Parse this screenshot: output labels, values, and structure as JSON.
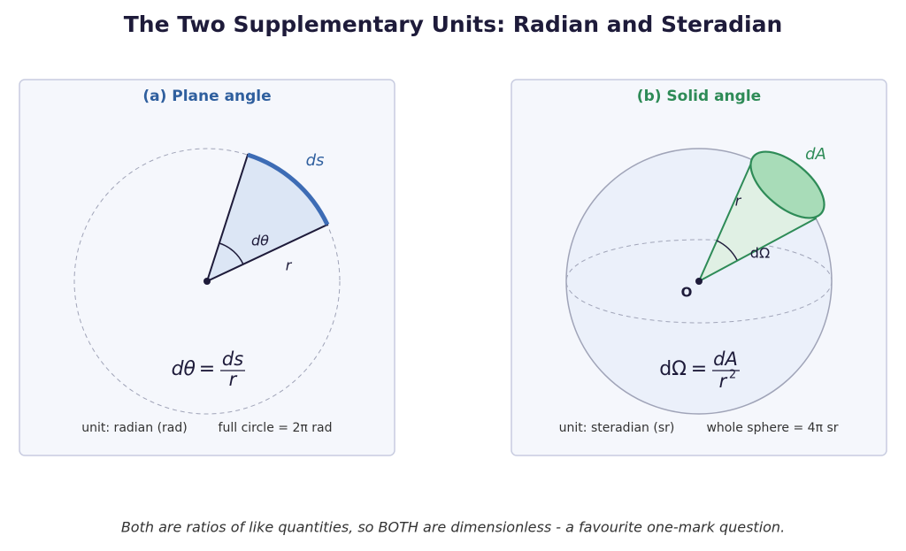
{
  "title": "The Two Supplementary Units: Radian and Steradian",
  "panels": [
    {
      "heading": "(a)  Plane angle",
      "labels": {
        "arc": "ds",
        "angle": "dθ",
        "radius": "r"
      },
      "formula": {
        "lhs": "dθ",
        "eq": "=",
        "num": "ds",
        "den": "r"
      },
      "units": [
        "unit: radian (rad)",
        "full circle = 2π rad"
      ]
    },
    {
      "heading": "(b)  Solid angle",
      "labels": {
        "area": "dA",
        "radius": "r",
        "angle": "dΩ",
        "origin": "O"
      },
      "formula": {
        "lhs": "dΩ",
        "eq": "=",
        "num": "dA",
        "den": "r",
        "den_power": "2"
      },
      "units": [
        "unit: steradian (sr)",
        "whole sphere = 4π sr"
      ]
    }
  ],
  "footnote": "Both are ratios of like quantities, so BOTH are dimensionless - a favourite one-mark question."
}
